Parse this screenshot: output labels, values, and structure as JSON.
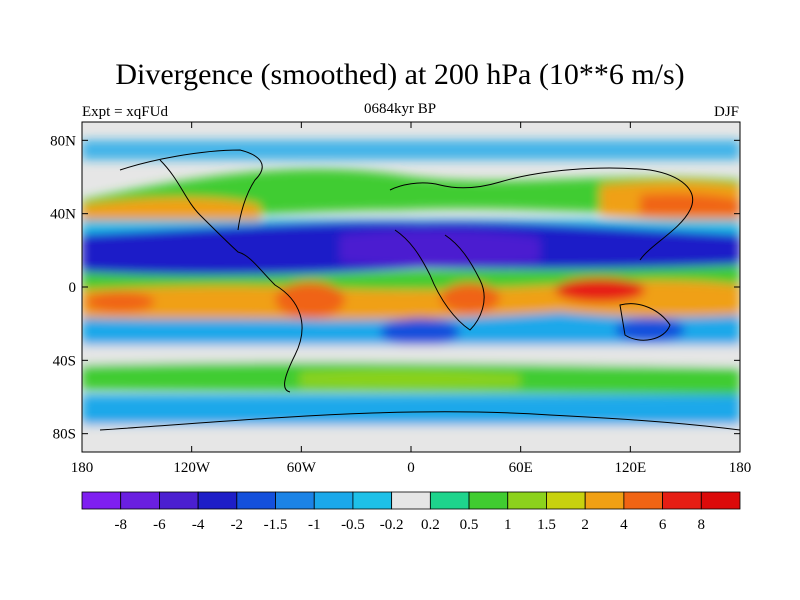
{
  "title": "Divergence (smoothed) at 200 hPa (10**6 m/s)",
  "left_label": "Expt = xqFUd",
  "center_label": "0684kyr BP",
  "right_label": "DJF",
  "lat_ticks": [
    "80N",
    "40N",
    "0",
    "40S",
    "80S"
  ],
  "lon_ticks": [
    "180",
    "120W",
    "60W",
    "0",
    "60E",
    "120E",
    "180"
  ],
  "colorbar": {
    "labels": [
      "-8",
      "-6",
      "-4",
      "-2",
      "-1.5",
      "-1",
      "-0.5",
      "-0.2",
      "0.2",
      "0.5",
      "1",
      "1.5",
      "2",
      "4",
      "6",
      "8"
    ],
    "colors": [
      "#7f1ff0",
      "#6a1fe0",
      "#4b1fd0",
      "#1e1ec8",
      "#1450dc",
      "#1b83e6",
      "#1aa8ea",
      "#1ec0e8",
      "#e6e6e6",
      "#1ed48c",
      "#40cc30",
      "#8cd21c",
      "#c8d20e",
      "#f0a014",
      "#f06414",
      "#e61e14",
      "#dc0a0a"
    ]
  }
}
